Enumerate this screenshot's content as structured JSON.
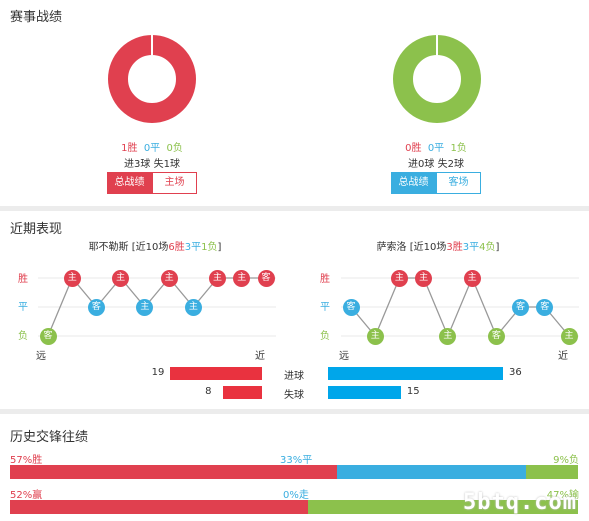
{
  "record": {
    "title": "赛事战绩",
    "left": {
      "win": "1胜",
      "draw": "0平",
      "loss": "0负",
      "goals": "进3球 失1球",
      "tab_total": "总战绩",
      "tab_venue": "主场",
      "ring_color": "#e0404f",
      "ring_fraction": 1.0
    },
    "right": {
      "win": "0胜",
      "draw": "0平",
      "loss": "1负",
      "goals": "进0球 失2球",
      "tab_total": "总战绩",
      "tab_venue": "客场",
      "ring_color": "#8cc14c",
      "ring_fraction": 1.0
    }
  },
  "recent": {
    "title": "近期表现",
    "left": {
      "team": "耶不勒斯",
      "summary_pre": "[近10场",
      "w": "6胜",
      "d": "3平",
      "l": "1负",
      "summary_post": "]",
      "results": [
        "l",
        "w",
        "d",
        "w",
        "d",
        "w",
        "d",
        "w",
        "w",
        "w"
      ],
      "venues": [
        "客",
        "主",
        "客",
        "主",
        "主",
        "主",
        "主",
        "主",
        "主",
        "客"
      ]
    },
    "right": {
      "team": "萨索洛",
      "summary_pre": "[近10场",
      "w": "3胜",
      "d": "3平",
      "l": "4负",
      "summary_post": "]",
      "results": [
        "d",
        "l",
        "w",
        "w",
        "l",
        "w",
        "l",
        "d",
        "d",
        "l"
      ],
      "venues": [
        "客",
        "主",
        "主",
        "主",
        "主",
        "主",
        "客",
        "客",
        "客",
        "主"
      ]
    },
    "levels": {
      "win": "胜",
      "draw": "平",
      "loss": "负"
    },
    "far": "远",
    "near": "近",
    "stats": {
      "scored_label": "进球",
      "conceded_label": "失球",
      "left_scored": 19,
      "left_conceded": 8,
      "right_scored": 36,
      "right_conceded": 15
    }
  },
  "history": {
    "title": "历史交锋往绩",
    "row1": {
      "left": "57%胜",
      "mid": "33%平",
      "right": "9%负",
      "a": 57,
      "b": 33,
      "c": 9
    },
    "row2": {
      "left": "52%赢",
      "mid": "0%走",
      "right": "47%输",
      "a": 52,
      "b": 0,
      "c": 47
    }
  },
  "watermark": "5btq.com"
}
